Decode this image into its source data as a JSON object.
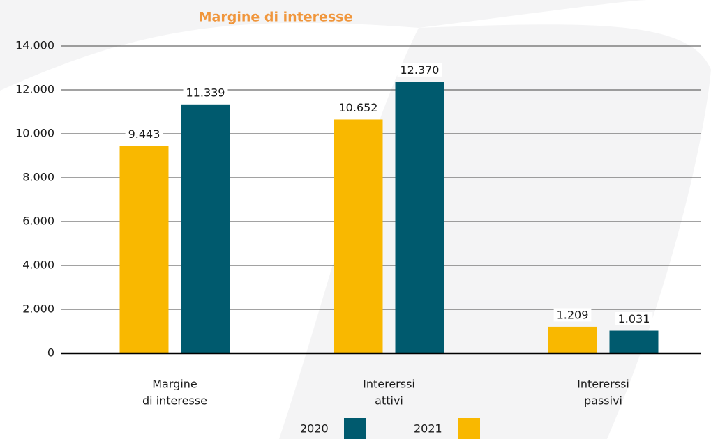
{
  "chart_data": {
    "type": "bar",
    "title": "Margine di interesse",
    "categories": [
      [
        "Margine",
        "di interesse"
      ],
      [
        "Intererssi",
        "attivi"
      ],
      [
        "Intererssi",
        "passivi"
      ]
    ],
    "series": [
      {
        "name": "2021",
        "color": "#f9b800",
        "values": [
          9443,
          10652,
          1209
        ],
        "value_labels": [
          "9.443",
          "10.652",
          "1.209"
        ]
      },
      {
        "name": "2020",
        "color": "#005a6e",
        "values": [
          11339,
          12370,
          1031
        ],
        "value_labels": [
          "11.339",
          "12.370",
          "1.031"
        ]
      }
    ],
    "ylim": [
      0,
      14000
    ],
    "yticks": [
      0,
      {
        "value": 2000,
        "label": "2.000"
      },
      {
        "value": 4000,
        "label": "4.000"
      },
      {
        "value": 6000,
        "label": "6.000"
      },
      {
        "value": 8000,
        "label": "8.000"
      },
      {
        "value": 10000,
        "label": "10.000"
      },
      {
        "value": 12000,
        "label": "12.000"
      },
      {
        "value": 14000,
        "label": "14.000"
      }
    ],
    "grid": true,
    "legend": "bottom"
  }
}
